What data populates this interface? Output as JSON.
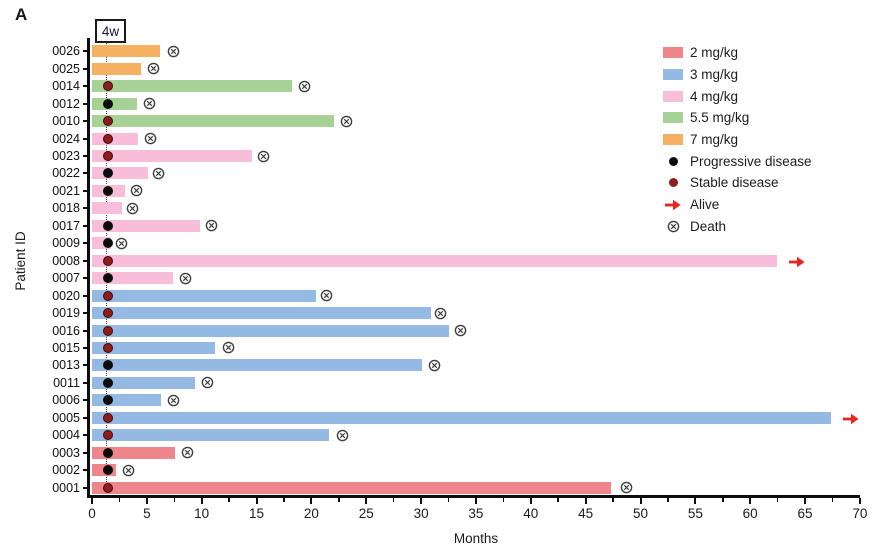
{
  "figure": {
    "panel_label": "A"
  },
  "chart_data": {
    "type": "bar",
    "subtype": "swimmer-plot",
    "orientation": "horizontal",
    "xlabel": "Months",
    "ylabel": "Patient ID",
    "xlim": [
      0,
      70
    ],
    "x_major_ticks": [
      0,
      5,
      10,
      15,
      20,
      25,
      30,
      35,
      40,
      45,
      50,
      55,
      60,
      65,
      70
    ],
    "x_minor_tick_step": 2.5,
    "grid": false,
    "legend_position": "upper-right",
    "reference_line": {
      "label": "4w",
      "month": 1.4,
      "style": "dotted"
    },
    "response_marker_month": 1.45,
    "dose_levels": [
      {
        "label": "2 mg/kg",
        "color": "#ef868c"
      },
      {
        "label": "3 mg/kg",
        "color": "#94b9e2"
      },
      {
        "label": "4 mg/kg",
        "color": "#f7bdd9"
      },
      {
        "label": "5.5 mg/kg",
        "color": "#a7d295"
      },
      {
        "label": "7 mg/kg",
        "color": "#f6b061"
      }
    ],
    "marker_legend": [
      {
        "label": "Progressive disease",
        "marker": "black-dot"
      },
      {
        "label": "Stable disease",
        "marker": "dark-red-dot"
      },
      {
        "label": "Alive",
        "marker": "red-arrow"
      },
      {
        "label": "Death",
        "marker": "circled-x"
      }
    ],
    "marker_colors": {
      "progressive": "#0b0b0b",
      "stable": "#8f1d1d",
      "alive_arrow": "#e8251f",
      "death": "#3f3f3f"
    },
    "patients": [
      {
        "id": "0026",
        "dose": "7 mg/kg",
        "duration_months": 6.2,
        "response": null,
        "outcome": "death",
        "outcome_month": 7.4
      },
      {
        "id": "0025",
        "dose": "7 mg/kg",
        "duration_months": 4.5,
        "response": null,
        "outcome": "death",
        "outcome_month": 5.6
      },
      {
        "id": "0014",
        "dose": "5.5 mg/kg",
        "duration_months": 18.2,
        "response": "stable",
        "outcome": "death",
        "outcome_month": 19.4
      },
      {
        "id": "0012",
        "dose": "5.5 mg/kg",
        "duration_months": 4.1,
        "response": "progressive",
        "outcome": "death",
        "outcome_month": 5.2
      },
      {
        "id": "0010",
        "dose": "5.5 mg/kg",
        "duration_months": 22.1,
        "response": "stable",
        "outcome": "death",
        "outcome_month": 23.2
      },
      {
        "id": "0024",
        "dose": "4 mg/kg",
        "duration_months": 4.2,
        "response": "stable",
        "outcome": "death",
        "outcome_month": 5.3
      },
      {
        "id": "0023",
        "dose": "4 mg/kg",
        "duration_months": 14.6,
        "response": "stable",
        "outcome": "death",
        "outcome_month": 15.6
      },
      {
        "id": "0022",
        "dose": "4 mg/kg",
        "duration_months": 5.1,
        "response": "progressive",
        "outcome": "death",
        "outcome_month": 6.1
      },
      {
        "id": "0021",
        "dose": "4 mg/kg",
        "duration_months": 3.0,
        "response": "progressive",
        "outcome": "death",
        "outcome_month": 4.1
      },
      {
        "id": "0018",
        "dose": "4 mg/kg",
        "duration_months": 2.7,
        "response": null,
        "outcome": "death",
        "outcome_month": 3.7
      },
      {
        "id": "0017",
        "dose": "4 mg/kg",
        "duration_months": 9.8,
        "response": "progressive",
        "outcome": "death",
        "outcome_month": 10.9
      },
      {
        "id": "0009",
        "dose": "4 mg/kg",
        "duration_months": 1.7,
        "response": "progressive",
        "outcome": "death",
        "outcome_month": 2.7
      },
      {
        "id": "0008",
        "dose": "4 mg/kg",
        "duration_months": 62.4,
        "response": "stable",
        "outcome": "alive",
        "outcome_month": 63.5
      },
      {
        "id": "0007",
        "dose": "4 mg/kg",
        "duration_months": 7.4,
        "response": "progressive",
        "outcome": "death",
        "outcome_month": 8.5
      },
      {
        "id": "0020",
        "dose": "3 mg/kg",
        "duration_months": 20.4,
        "response": "stable",
        "outcome": "death",
        "outcome_month": 21.4
      },
      {
        "id": "0019",
        "dose": "3 mg/kg",
        "duration_months": 30.9,
        "response": "stable",
        "outcome": "death",
        "outcome_month": 31.8
      },
      {
        "id": "0016",
        "dose": "3 mg/kg",
        "duration_months": 32.5,
        "response": "stable",
        "outcome": "death",
        "outcome_month": 33.6
      },
      {
        "id": "0015",
        "dose": "3 mg/kg",
        "duration_months": 11.2,
        "response": "stable",
        "outcome": "death",
        "outcome_month": 12.4
      },
      {
        "id": "0013",
        "dose": "3 mg/kg",
        "duration_months": 30.1,
        "response": "progressive",
        "outcome": "death",
        "outcome_month": 31.2
      },
      {
        "id": "0011",
        "dose": "3 mg/kg",
        "duration_months": 9.4,
        "response": "progressive",
        "outcome": "death",
        "outcome_month": 10.5
      },
      {
        "id": "0006",
        "dose": "3 mg/kg",
        "duration_months": 6.3,
        "response": "progressive",
        "outcome": "death",
        "outcome_month": 7.4
      },
      {
        "id": "0005",
        "dose": "3 mg/kg",
        "duration_months": 67.4,
        "response": "stable",
        "outcome": "alive",
        "outcome_month": 68.5
      },
      {
        "id": "0004",
        "dose": "3 mg/kg",
        "duration_months": 21.6,
        "response": "stable",
        "outcome": "death",
        "outcome_month": 22.8
      },
      {
        "id": "0003",
        "dose": "2 mg/kg",
        "duration_months": 7.6,
        "response": "progressive",
        "outcome": "death",
        "outcome_month": 8.7
      },
      {
        "id": "0002",
        "dose": "2 mg/kg",
        "duration_months": 2.2,
        "response": "progressive",
        "outcome": "death",
        "outcome_month": 3.3
      },
      {
        "id": "0001",
        "dose": "2 mg/kg",
        "duration_months": 47.3,
        "response": "stable",
        "outcome": "death",
        "outcome_month": 48.7
      }
    ]
  }
}
